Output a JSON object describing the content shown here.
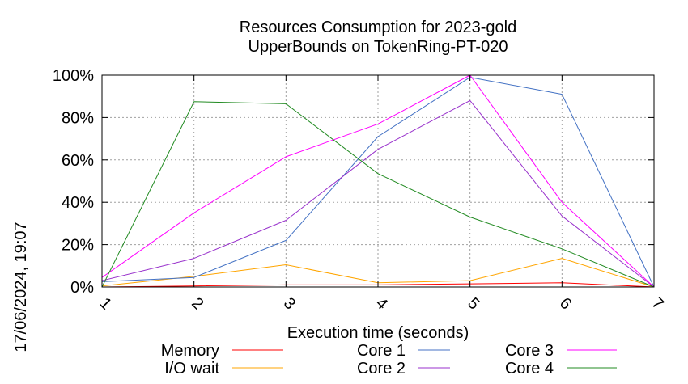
{
  "chart_data": {
    "type": "line",
    "title": "Resources Consumption for 2023-gold",
    "subtitle": "UpperBounds on TokenRing-PT-020",
    "xlabel": "Execution time (seconds)",
    "ylabel": "",
    "side_label": "17/06/2024, 19:07",
    "x": [
      1,
      2,
      3,
      4,
      5,
      6,
      7
    ],
    "x_ticks": [
      "1",
      "2",
      "3",
      "4",
      "5",
      "6",
      "7"
    ],
    "xlim": [
      1,
      7
    ],
    "y_ticks": [
      "0%",
      "20%",
      "40%",
      "60%",
      "80%",
      "100%"
    ],
    "ylim": [
      0,
      100
    ],
    "grid": true,
    "legend_position": "bottom",
    "series": [
      {
        "name": "Memory",
        "color": "#ff0000",
        "values": [
          0,
          0.5,
          1,
          1,
          1.5,
          2,
          0
        ]
      },
      {
        "name": "I/O wait",
        "color": "#ffa500",
        "values": [
          0.5,
          5,
          10.5,
          2,
          3,
          13.5,
          0
        ]
      },
      {
        "name": "Core 1",
        "color": "#4472c4",
        "values": [
          2.5,
          4.5,
          22,
          71,
          99,
          91,
          0
        ]
      },
      {
        "name": "Core 2",
        "color": "#9932cc",
        "values": [
          3,
          13.5,
          31.5,
          65,
          88,
          33.5,
          0
        ]
      },
      {
        "name": "Core 3",
        "color": "#ff00ff",
        "values": [
          4.5,
          35,
          61.5,
          77,
          100,
          40,
          0
        ]
      },
      {
        "name": "Core 4",
        "color": "#228b22",
        "values": [
          0,
          87.5,
          86.5,
          53.5,
          33,
          18,
          0
        ]
      }
    ]
  }
}
